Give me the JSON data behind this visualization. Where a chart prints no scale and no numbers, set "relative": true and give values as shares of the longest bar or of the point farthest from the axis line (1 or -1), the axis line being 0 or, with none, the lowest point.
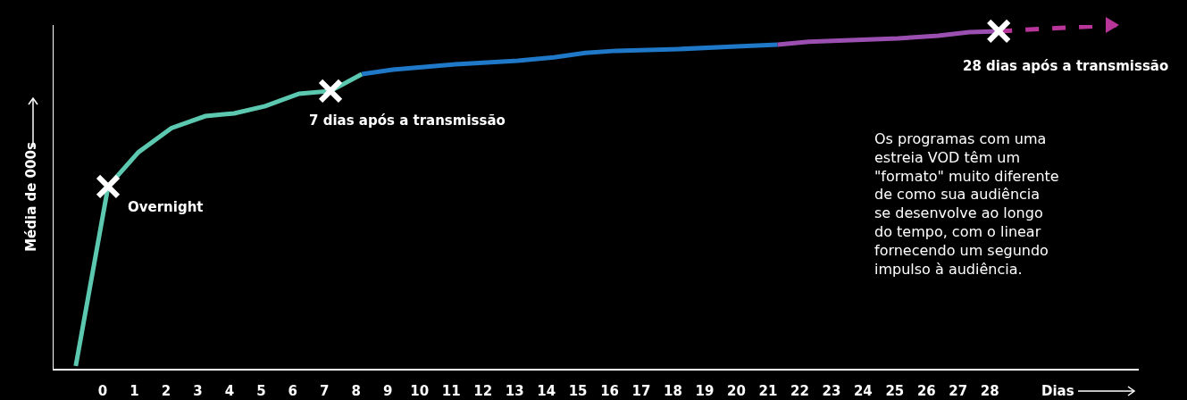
{
  "chart_data": {
    "type": "line",
    "relative": true,
    "xlabel": "Dias",
    "ylabel": "Média de 000s",
    "xlim": [
      -1.55,
      32.7
    ],
    "xticks": [
      0,
      1,
      2,
      3,
      4,
      5,
      6,
      7,
      8,
      9,
      10,
      11,
      12,
      13,
      14,
      15,
      16,
      17,
      18,
      19,
      20,
      21,
      22,
      23,
      24,
      25,
      26,
      27,
      28
    ],
    "grid": false,
    "line_style": "solid",
    "series": [
      {
        "color": "#5cc8b0",
        "x": [
          -0.85,
          0.17,
          1.13,
          2.17,
          3.24,
          4.15,
          5.13,
          6.2,
          7.19,
          8.18
        ],
        "values": [
          0.008,
          0.53,
          0.63,
          0.7,
          0.735,
          0.743,
          0.764,
          0.8,
          0.808,
          0.857
        ]
      },
      {
        "color": "#1f78c8",
        "x": [
          8.18,
          9.16,
          10.15,
          11.14,
          12.13,
          13.1,
          14.24,
          15.23,
          16.2,
          18.19,
          20.16,
          21.3
        ],
        "values": [
          0.857,
          0.87,
          0.878,
          0.886,
          0.891,
          0.896,
          0.906,
          0.919,
          0.925,
          0.93,
          0.938,
          0.943
        ]
      },
      {
        "color": "#9b4fb0",
        "x": [
          21.3,
          22.28,
          25.1,
          26.37,
          27.35,
          28.28
        ],
        "values": [
          0.943,
          0.951,
          0.961,
          0.969,
          0.979,
          0.982
        ]
      },
      {
        "color": "#b8359a",
        "line_style": "dashed",
        "x": [
          28.28,
          32.0
        ],
        "values": [
          0.982,
          1.0
        ]
      },
      {
        "type": "scatter",
        "marker": "cross",
        "color": "#ffffff",
        "x": [
          0.17,
          7.19,
          28.28
        ],
        "values": [
          0.53,
          0.808,
          0.982
        ]
      }
    ],
    "annotations": [
      {
        "text": "Overnight",
        "x": 0.17,
        "y": 0.53
      },
      {
        "text": "7 dias após a transmissão",
        "x": 7.19,
        "y": 0.808
      },
      {
        "text": "28 dias após a transmissão",
        "x": 28.28,
        "y": 0.982
      },
      "Os programas com uma\nestreia VOD têm um\n\"formato\" muito diferente\nde como sua audiência\nse desenvolve ao longo\ndo tempo, com o linear\nfornecendo um segundo\nimpulso à audiência."
    ]
  }
}
